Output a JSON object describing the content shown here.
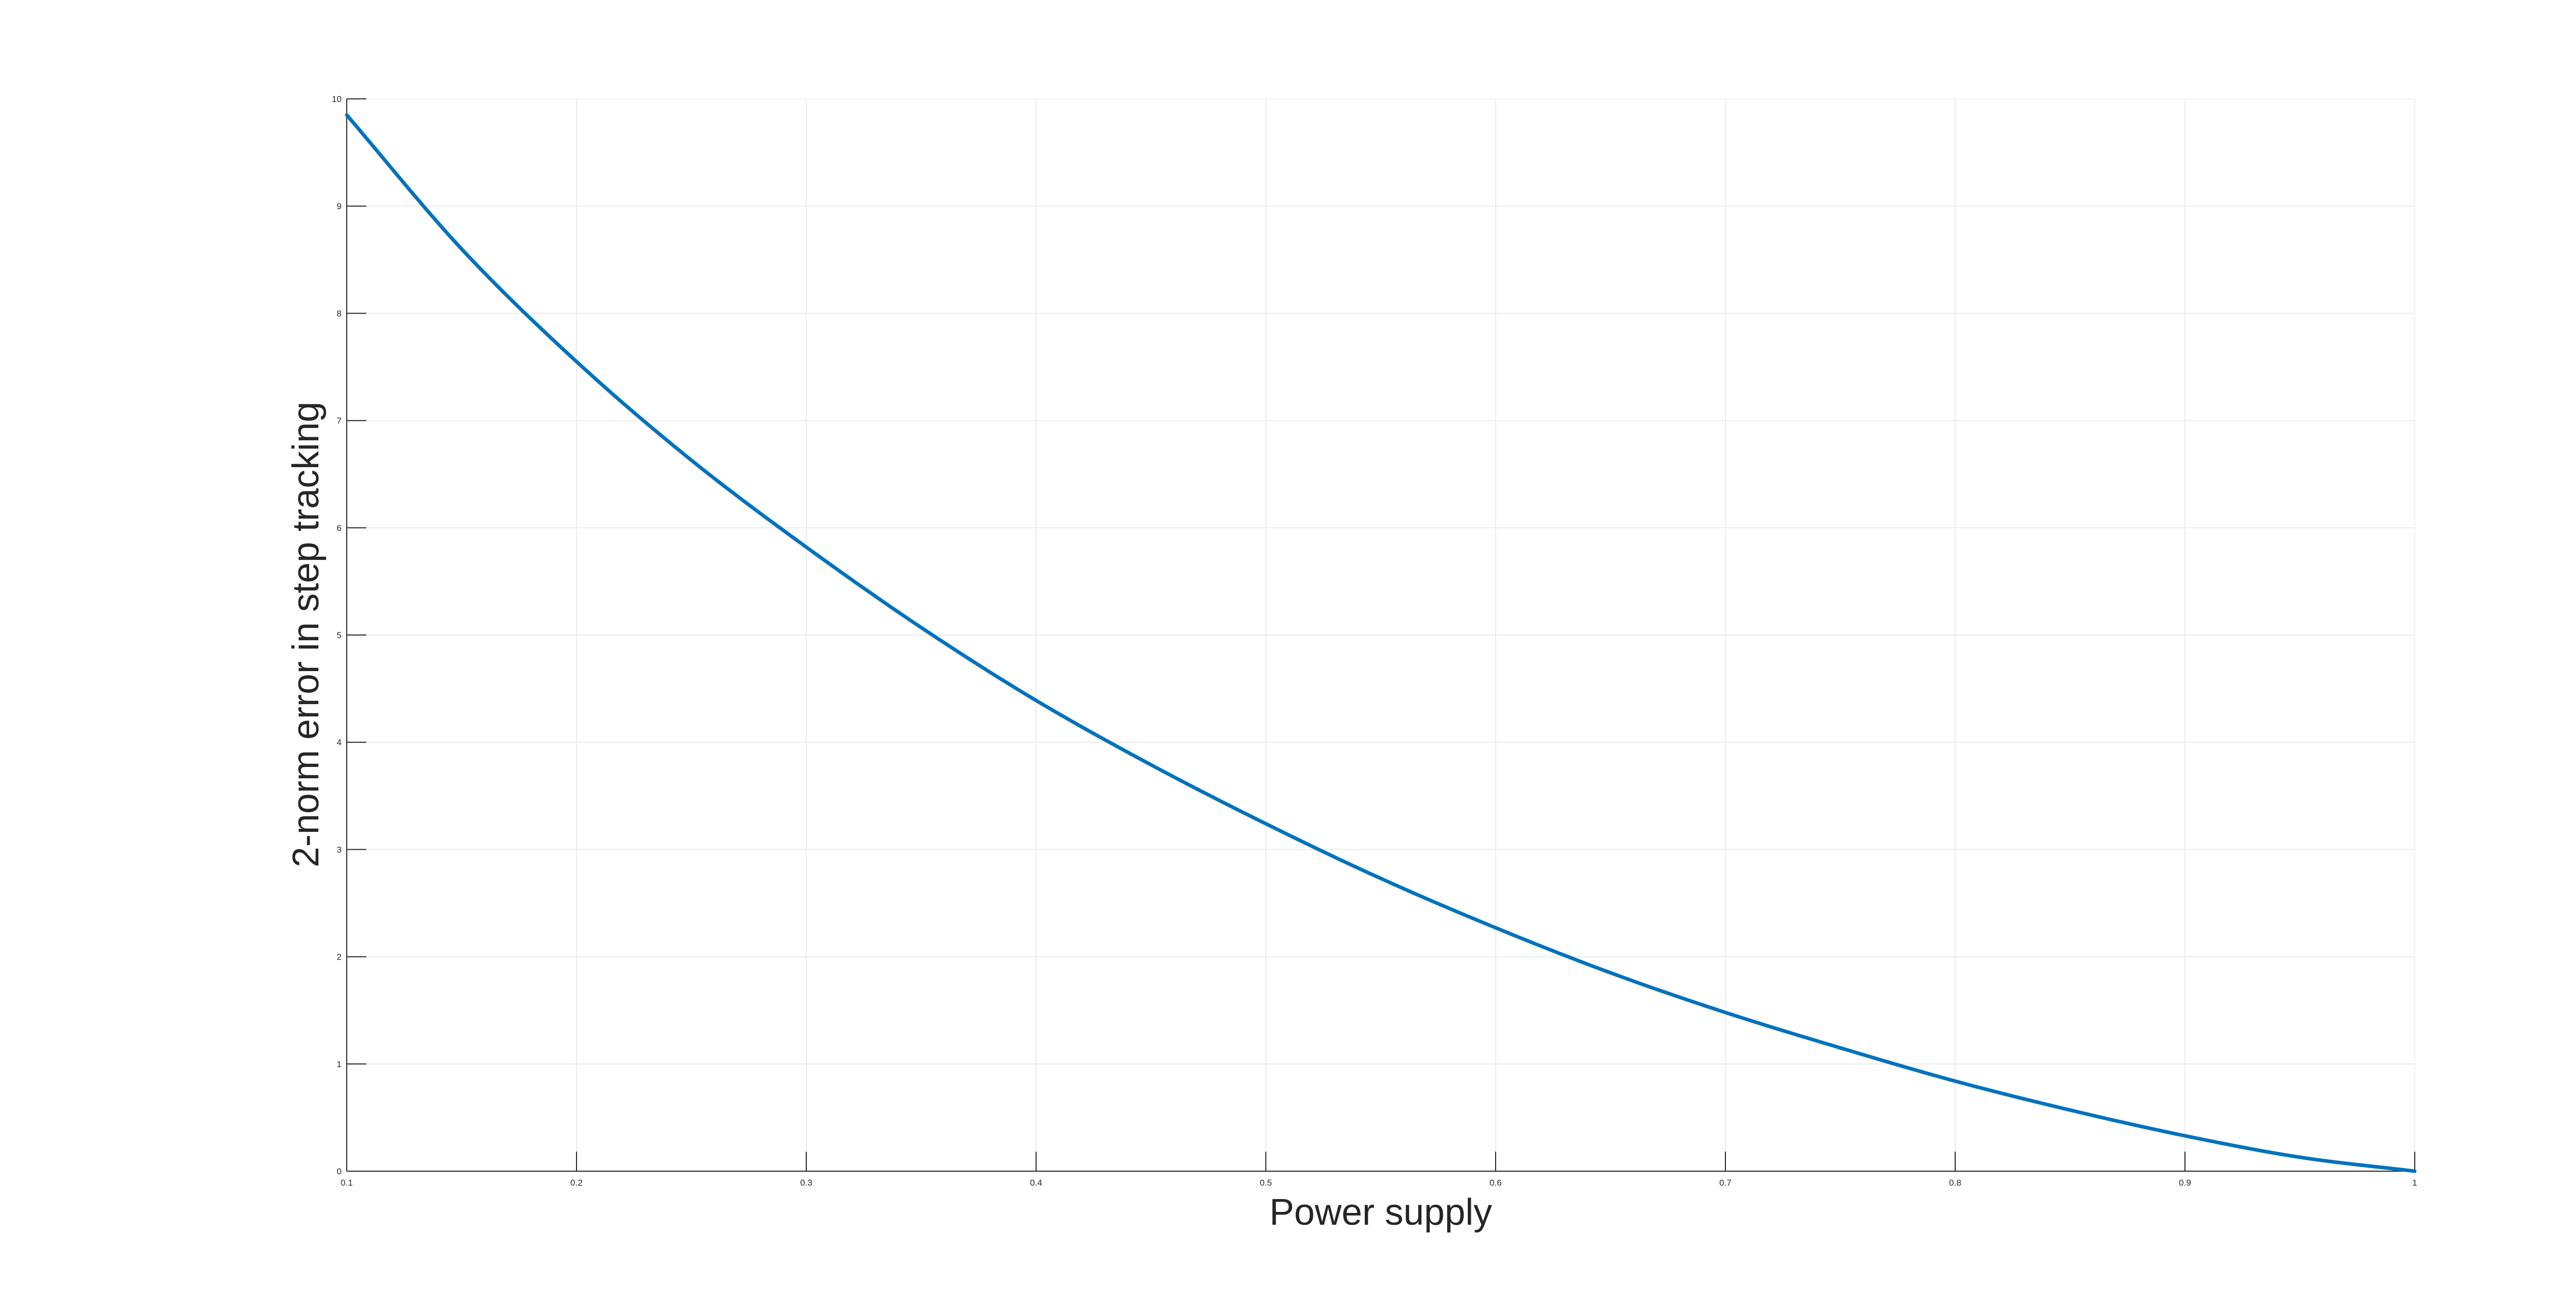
{
  "chart_data": {
    "type": "line",
    "title": "",
    "xlabel": "Power supply",
    "ylabel": "2-norm error in step tracking",
    "xlim": [
      0.1,
      1
    ],
    "ylim": [
      0,
      10
    ],
    "grid": true,
    "x_ticks": [
      "0.1",
      "0.2",
      "0.3",
      "0.4",
      "0.5",
      "0.6",
      "0.7",
      "0.8",
      "0.9",
      "1"
    ],
    "y_ticks": [
      "0",
      "1",
      "2",
      "3",
      "4",
      "5",
      "6",
      "7",
      "8",
      "9",
      "10"
    ],
    "series": [
      {
        "color": "#0072BD",
        "x": [
          0.1,
          0.15,
          0.2,
          0.25,
          0.3,
          0.35,
          0.4,
          0.45,
          0.5,
          0.55,
          0.6,
          0.65,
          0.7,
          0.75,
          0.8,
          0.85,
          0.9,
          0.95,
          1.0
        ],
        "y": [
          9.85,
          8.6,
          7.55,
          6.63,
          5.82,
          5.07,
          4.39,
          3.79,
          3.24,
          2.73,
          2.27,
          1.85,
          1.48,
          1.15,
          0.84,
          0.57,
          0.33,
          0.13,
          0.0
        ]
      }
    ]
  }
}
